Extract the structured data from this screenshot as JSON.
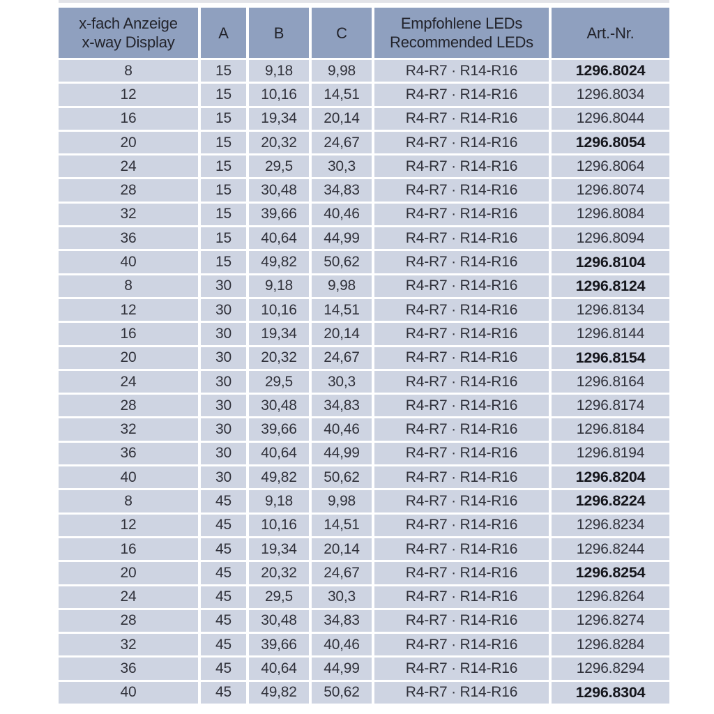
{
  "table": {
    "header": {
      "col1_line1": "x-fach Anzeige",
      "col1_line2": "x-way Display",
      "col2": "A",
      "col3": "B",
      "col4": "C",
      "col5_line1": "Empfohlene LEDs",
      "col5_line2": "Recommended LEDs",
      "col6": "Art.-Nr."
    },
    "colors": {
      "page_bg": "#ffffff",
      "header_bg": "#8fa0bf",
      "row_bg": "#ced4e2",
      "text": "#30313a",
      "header_text": "#22232b",
      "bold_text": "#15161c",
      "strip": "#e2e3e8"
    },
    "rows": [
      {
        "x": "8",
        "a": "15",
        "b": "9,18",
        "c": "9,98",
        "leds": "R4-R7 · R14-R16",
        "art": "1296.8024",
        "bold": true
      },
      {
        "x": "12",
        "a": "15",
        "b": "10,16",
        "c": "14,51",
        "leds": "R4-R7 · R14-R16",
        "art": "1296.8034",
        "bold": false
      },
      {
        "x": "16",
        "a": "15",
        "b": "19,34",
        "c": "20,14",
        "leds": "R4-R7 · R14-R16",
        "art": "1296.8044",
        "bold": false
      },
      {
        "x": "20",
        "a": "15",
        "b": "20,32",
        "c": "24,67",
        "leds": "R4-R7 · R14-R16",
        "art": "1296.8054",
        "bold": true
      },
      {
        "x": "24",
        "a": "15",
        "b": "29,5",
        "c": "30,3",
        "leds": "R4-R7 · R14-R16",
        "art": "1296.8064",
        "bold": false
      },
      {
        "x": "28",
        "a": "15",
        "b": "30,48",
        "c": "34,83",
        "leds": "R4-R7 · R14-R16",
        "art": "1296.8074",
        "bold": false
      },
      {
        "x": "32",
        "a": "15",
        "b": "39,66",
        "c": "40,46",
        "leds": "R4-R7 · R14-R16",
        "art": "1296.8084",
        "bold": false
      },
      {
        "x": "36",
        "a": "15",
        "b": "40,64",
        "c": "44,99",
        "leds": "R4-R7 · R14-R16",
        "art": "1296.8094",
        "bold": false
      },
      {
        "x": "40",
        "a": "15",
        "b": "49,82",
        "c": "50,62",
        "leds": "R4-R7 · R14-R16",
        "art": "1296.8104",
        "bold": true
      },
      {
        "x": "8",
        "a": "30",
        "b": "9,18",
        "c": "9,98",
        "leds": "R4-R7 · R14-R16",
        "art": "1296.8124",
        "bold": true
      },
      {
        "x": "12",
        "a": "30",
        "b": "10,16",
        "c": "14,51",
        "leds": "R4-R7 · R14-R16",
        "art": "1296.8134",
        "bold": false
      },
      {
        "x": "16",
        "a": "30",
        "b": "19,34",
        "c": "20,14",
        "leds": "R4-R7 · R14-R16",
        "art": "1296.8144",
        "bold": false
      },
      {
        "x": "20",
        "a": "30",
        "b": "20,32",
        "c": "24,67",
        "leds": "R4-R7 · R14-R16",
        "art": "1296.8154",
        "bold": true
      },
      {
        "x": "24",
        "a": "30",
        "b": "29,5",
        "c": "30,3",
        "leds": "R4-R7 · R14-R16",
        "art": "1296.8164",
        "bold": false
      },
      {
        "x": "28",
        "a": "30",
        "b": "30,48",
        "c": "34,83",
        "leds": "R4-R7 · R14-R16",
        "art": "1296.8174",
        "bold": false
      },
      {
        "x": "32",
        "a": "30",
        "b": "39,66",
        "c": "40,46",
        "leds": "R4-R7 · R14-R16",
        "art": "1296.8184",
        "bold": false
      },
      {
        "x": "36",
        "a": "30",
        "b": "40,64",
        "c": "44,99",
        "leds": "R4-R7 · R14-R16",
        "art": "1296.8194",
        "bold": false
      },
      {
        "x": "40",
        "a": "30",
        "b": "49,82",
        "c": "50,62",
        "leds": "R4-R7 · R14-R16",
        "art": "1296.8204",
        "bold": true
      },
      {
        "x": "8",
        "a": "45",
        "b": "9,18",
        "c": "9,98",
        "leds": "R4-R7 · R14-R16",
        "art": "1296.8224",
        "bold": true
      },
      {
        "x": "12",
        "a": "45",
        "b": "10,16",
        "c": "14,51",
        "leds": "R4-R7 · R14-R16",
        "art": "1296.8234",
        "bold": false
      },
      {
        "x": "16",
        "a": "45",
        "b": "19,34",
        "c": "20,14",
        "leds": "R4-R7 · R14-R16",
        "art": "1296.8244",
        "bold": false
      },
      {
        "x": "20",
        "a": "45",
        "b": "20,32",
        "c": "24,67",
        "leds": "R4-R7 · R14-R16",
        "art": "1296.8254",
        "bold": true
      },
      {
        "x": "24",
        "a": "45",
        "b": "29,5",
        "c": "30,3",
        "leds": "R4-R7 · R14-R16",
        "art": "1296.8264",
        "bold": false
      },
      {
        "x": "28",
        "a": "45",
        "b": "30,48",
        "c": "34,83",
        "leds": "R4-R7 · R14-R16",
        "art": "1296.8274",
        "bold": false
      },
      {
        "x": "32",
        "a": "45",
        "b": "39,66",
        "c": "40,46",
        "leds": "R4-R7 · R14-R16",
        "art": "1296.8284",
        "bold": false
      },
      {
        "x": "36",
        "a": "45",
        "b": "40,64",
        "c": "44,99",
        "leds": "R4-R7 · R14-R16",
        "art": "1296.8294",
        "bold": false
      },
      {
        "x": "40",
        "a": "45",
        "b": "49,82",
        "c": "50,62",
        "leds": "R4-R7 · R14-R16",
        "art": "1296.8304",
        "bold": true
      }
    ]
  }
}
